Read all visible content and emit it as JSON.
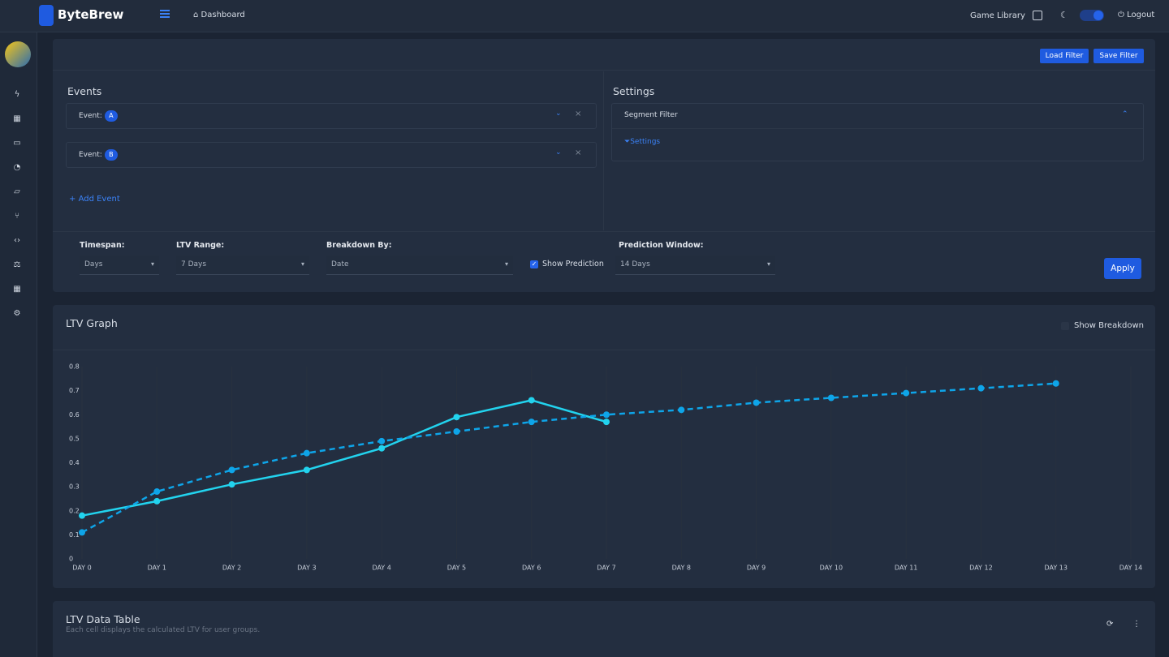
{
  "header": {
    "brand": "ByteBrew",
    "breadcrumb": "Dashboard",
    "game_library": "Game Library",
    "logout": "Logout"
  },
  "filter": {
    "load": "Load Filter",
    "save": "Save Filter",
    "events": {
      "title": "Events",
      "items": [
        {
          "label": "Event:",
          "badge": "A"
        },
        {
          "label": "Event:",
          "badge": "B"
        }
      ],
      "add": "Add Event"
    },
    "settings": {
      "title": "Settings",
      "segment": "Segment Filter",
      "link": "Settings"
    }
  },
  "controls": {
    "timespan": {
      "label": "Timespan:",
      "value": "Days"
    },
    "ltv_range": {
      "label": "LTV Range:",
      "value": "7 Days"
    },
    "breakdown": {
      "label": "Breakdown By:",
      "value": "Date"
    },
    "show_prediction": "Show Prediction",
    "prediction_window": {
      "label": "Prediction Window:",
      "value": "14 Days"
    },
    "apply": "Apply"
  },
  "graph": {
    "title": "LTV Graph",
    "show_breakdown": "Show Breakdown"
  },
  "chart_data": {
    "type": "line",
    "categories": [
      "DAY 0",
      "DAY 1",
      "DAY 2",
      "DAY 3",
      "DAY 4",
      "DAY 5",
      "DAY 6",
      "DAY 7",
      "DAY 8",
      "DAY 9",
      "DAY 10",
      "DAY 11",
      "DAY 12",
      "DAY 13",
      "DAY 14"
    ],
    "series": [
      {
        "color": "#22d3ee",
        "dashed": false,
        "values": [
          0.18,
          0.24,
          0.31,
          0.37,
          0.46,
          0.59,
          0.66,
          0.57,
          null,
          null,
          null,
          null,
          null,
          null,
          null
        ]
      },
      {
        "color": "#0ea5e9",
        "dashed": true,
        "values": [
          0.11,
          0.28,
          0.37,
          0.44,
          0.49,
          0.53,
          0.57,
          0.6,
          0.62,
          0.65,
          0.67,
          0.69,
          0.71,
          0.73,
          null
        ]
      }
    ],
    "ylim": [
      0,
      0.8
    ],
    "yticks": [
      0,
      0.1,
      0.2,
      0.3,
      0.4,
      0.5,
      0.6,
      0.7,
      0.8
    ],
    "grid": "x"
  },
  "table": {
    "title": "LTV Data Table",
    "subtitle": "Each cell displays the calculated LTV for user groups."
  }
}
